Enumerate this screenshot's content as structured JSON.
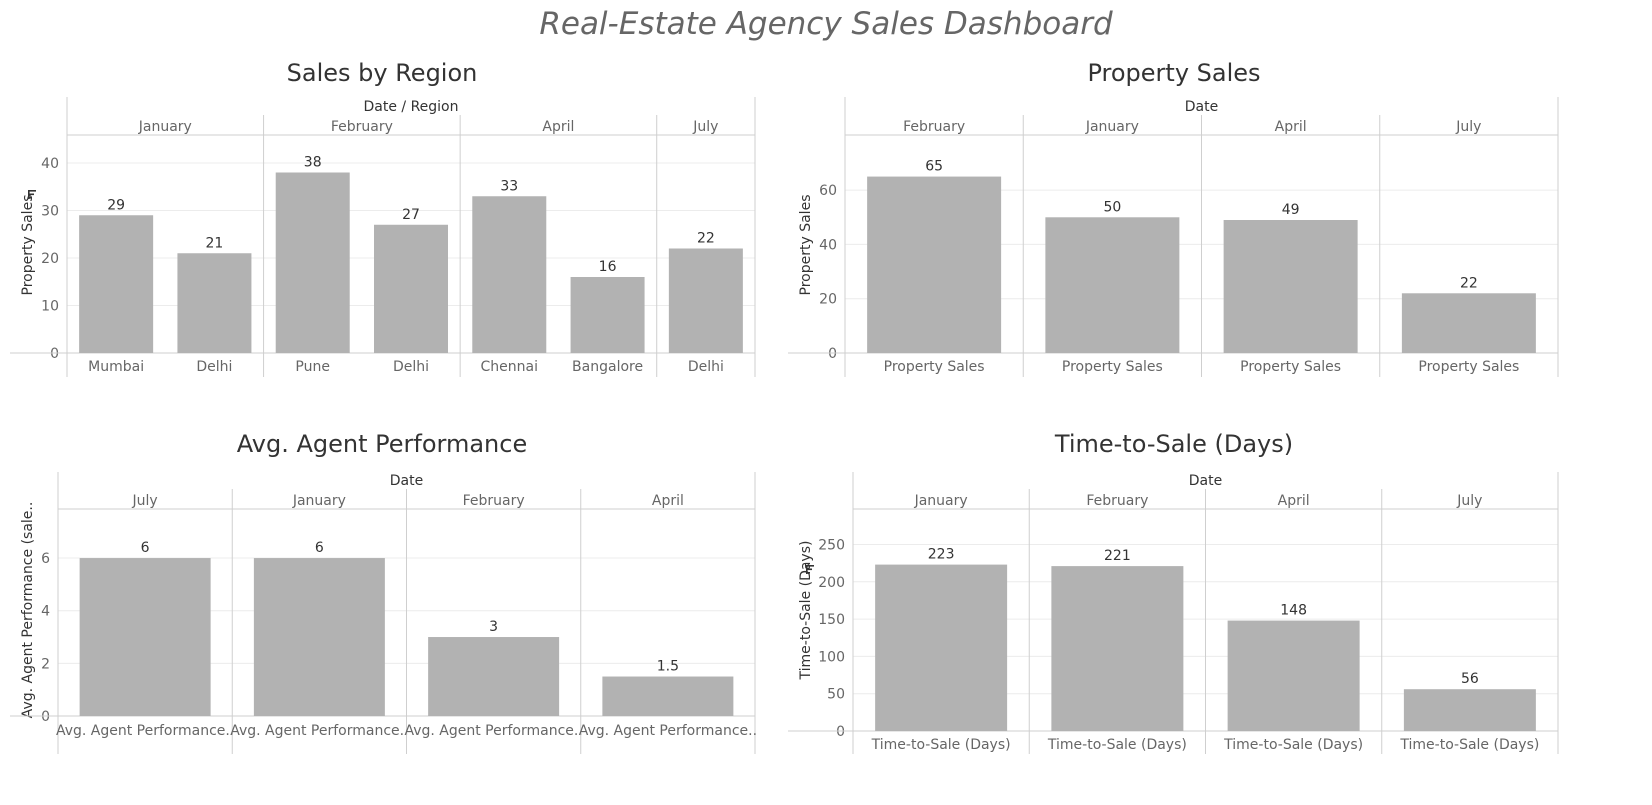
{
  "dashboard": {
    "title": "Real-Estate Agency Sales Dashboard"
  },
  "chart_data": [
    {
      "type": "bar",
      "title": "Sales by Region",
      "header": "Date / Region",
      "ylabel": "Property Sales",
      "ylim": [
        0,
        40
      ],
      "yticks": [
        0,
        10,
        20,
        30,
        40
      ],
      "sort_icon": true,
      "groups": [
        {
          "label": "January",
          "bars": [
            {
              "category": "Mumbai",
              "value": 29
            },
            {
              "category": "Delhi",
              "value": 21
            }
          ]
        },
        {
          "label": "February",
          "bars": [
            {
              "category": "Pune",
              "value": 38
            },
            {
              "category": "Delhi",
              "value": 27
            }
          ]
        },
        {
          "label": "April",
          "bars": [
            {
              "category": "Chennai",
              "value": 33
            },
            {
              "category": "Bangalore",
              "value": 16
            }
          ]
        },
        {
          "label": "July",
          "bars": [
            {
              "category": "Delhi",
              "value": 22
            }
          ]
        }
      ]
    },
    {
      "type": "bar",
      "title": "Property Sales",
      "header": "Date",
      "ylabel": "Property Sales",
      "ylim": [
        0,
        70
      ],
      "yticks": [
        0,
        20,
        40,
        60
      ],
      "sort_icon": false,
      "groups": [
        {
          "label": "February",
          "bars": [
            {
              "category": "Property Sales",
              "value": 65
            }
          ]
        },
        {
          "label": "January",
          "bars": [
            {
              "category": "Property Sales",
              "value": 50
            }
          ]
        },
        {
          "label": "April",
          "bars": [
            {
              "category": "Property Sales",
              "value": 49
            }
          ]
        },
        {
          "label": "July",
          "bars": [
            {
              "category": "Property Sales",
              "value": 22
            }
          ]
        }
      ]
    },
    {
      "type": "bar",
      "title": "Avg. Agent Performance",
      "header": "Date",
      "ylabel": "Avg. Agent Performance (sale..",
      "ylim": [
        0,
        6.8
      ],
      "yticks": [
        0,
        2,
        4,
        6
      ],
      "sort_icon": false,
      "groups": [
        {
          "label": "July",
          "bars": [
            {
              "category": "Avg. Agent Performance..",
              "value": 6,
              "value_label": "6"
            }
          ]
        },
        {
          "label": "January",
          "bars": [
            {
              "category": "Avg. Agent Performance..",
              "value": 6,
              "value_label": "6"
            }
          ]
        },
        {
          "label": "February",
          "bars": [
            {
              "category": "Avg. Agent Performance..",
              "value": 3,
              "value_label": "3"
            }
          ]
        },
        {
          "label": "April",
          "bars": [
            {
              "category": "Avg. Agent Performance..",
              "value": 1.5,
              "value_label": "1.5"
            }
          ]
        }
      ]
    },
    {
      "type": "bar",
      "title": "Time-to-Sale (Days)",
      "header": "Date",
      "ylabel": "Time-to-Sale (Days)",
      "ylim": [
        0,
        260
      ],
      "yticks": [
        0,
        50,
        100,
        150,
        200,
        250
      ],
      "sort_icon": true,
      "groups": [
        {
          "label": "January",
          "bars": [
            {
              "category": "Time-to-Sale (Days)",
              "value": 223
            }
          ]
        },
        {
          "label": "February",
          "bars": [
            {
              "category": "Time-to-Sale (Days)",
              "value": 221
            }
          ]
        },
        {
          "label": "April",
          "bars": [
            {
              "category": "Time-to-Sale (Days)",
              "value": 148
            }
          ]
        },
        {
          "label": "July",
          "bars": [
            {
              "category": "Time-to-Sale (Days)",
              "value": 56
            }
          ]
        }
      ]
    }
  ]
}
